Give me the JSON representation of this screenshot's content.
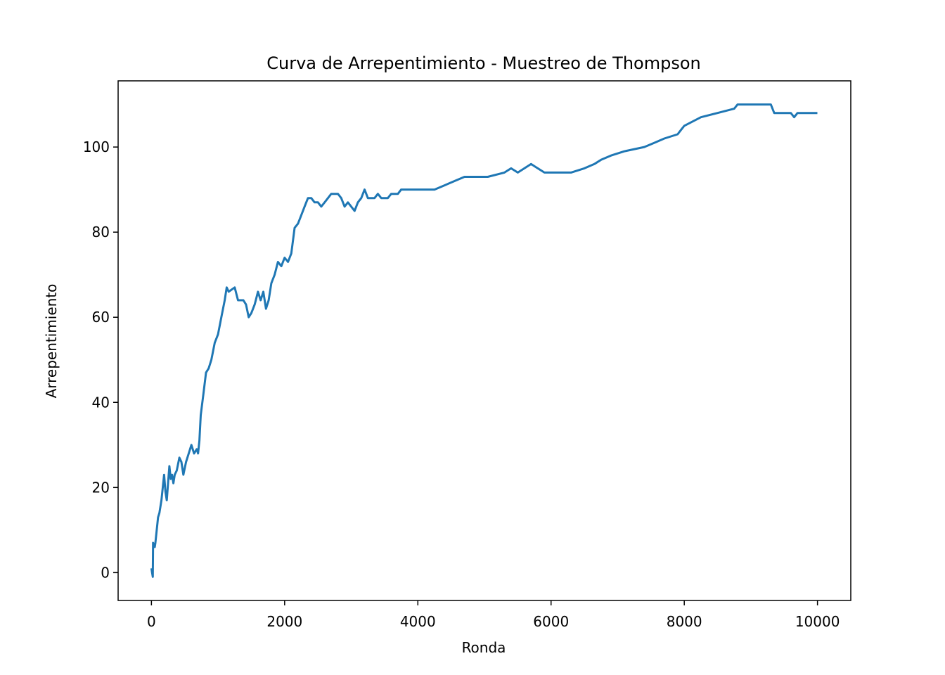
{
  "chart_data": {
    "type": "line",
    "title": "Curva de Arrepentimiento - Muestreo de Thompson",
    "xlabel": "Ronda",
    "ylabel": "Arrepentimiento",
    "color": "#1f77b4",
    "x": [
      0,
      10,
      20,
      25,
      50,
      60,
      100,
      120,
      150,
      170,
      190,
      210,
      230,
      250,
      270,
      290,
      310,
      330,
      350,
      380,
      420,
      450,
      480,
      520,
      560,
      600,
      640,
      680,
      700,
      720,
      740,
      780,
      820,
      860,
      900,
      950,
      1000,
      1050,
      1100,
      1130,
      1160,
      1250,
      1300,
      1380,
      1420,
      1460,
      1500,
      1550,
      1600,
      1640,
      1680,
      1720,
      1760,
      1800,
      1850,
      1900,
      1950,
      2000,
      2050,
      2100,
      2150,
      2200,
      2250,
      2300,
      2350,
      2400,
      2450,
      2500,
      2550,
      2600,
      2700,
      2800,
      2850,
      2900,
      2950,
      3000,
      3050,
      3100,
      3150,
      3200,
      3250,
      3350,
      3400,
      3450,
      3550,
      3600,
      3700,
      3750,
      3850,
      4050,
      4250,
      4400,
      4550,
      4700,
      4950,
      5050,
      5300,
      5400,
      5500,
      5600,
      5700,
      5800,
      5900,
      6000,
      6300,
      6500,
      6650,
      6750,
      6900,
      7100,
      7400,
      7550,
      7700,
      7900,
      7950,
      8000,
      8250,
      8500,
      8750,
      8800,
      9300,
      9350,
      9600,
      9650,
      9700,
      9999
    ],
    "values": [
      1,
      0,
      -1,
      7,
      6,
      7,
      13,
      14,
      17,
      20,
      23,
      19,
      17,
      21,
      25,
      22,
      23,
      21,
      23,
      24,
      27,
      26,
      23,
      26,
      28,
      30,
      28,
      29,
      28,
      31,
      37,
      42,
      47,
      48,
      50,
      54,
      56,
      60,
      64,
      67,
      66,
      67,
      64,
      64,
      63,
      60,
      61,
      63,
      66,
      64,
      66,
      62,
      64,
      68,
      70,
      73,
      72,
      74,
      73,
      75,
      81,
      82,
      84,
      86,
      88,
      88,
      87,
      87,
      86,
      87,
      89,
      89,
      88,
      86,
      87,
      86,
      85,
      87,
      88,
      90,
      88,
      88,
      89,
      88,
      88,
      89,
      89,
      90,
      90,
      90,
      90,
      91,
      92,
      93,
      93,
      93,
      94,
      95,
      94,
      95,
      96,
      95,
      94,
      94,
      94,
      95,
      96,
      97,
      98,
      99,
      100,
      101,
      102,
      103,
      104,
      105,
      107,
      108,
      109,
      110,
      110,
      108,
      108,
      107,
      108,
      108
    ],
    "xlim": [
      -500,
      10500
    ],
    "xticks": [
      0,
      2000,
      4000,
      6000,
      8000,
      10000
    ],
    "ylim": [
      -6.55,
      115.55
    ],
    "yticks": [
      0,
      20,
      40,
      60,
      80,
      100
    ]
  }
}
